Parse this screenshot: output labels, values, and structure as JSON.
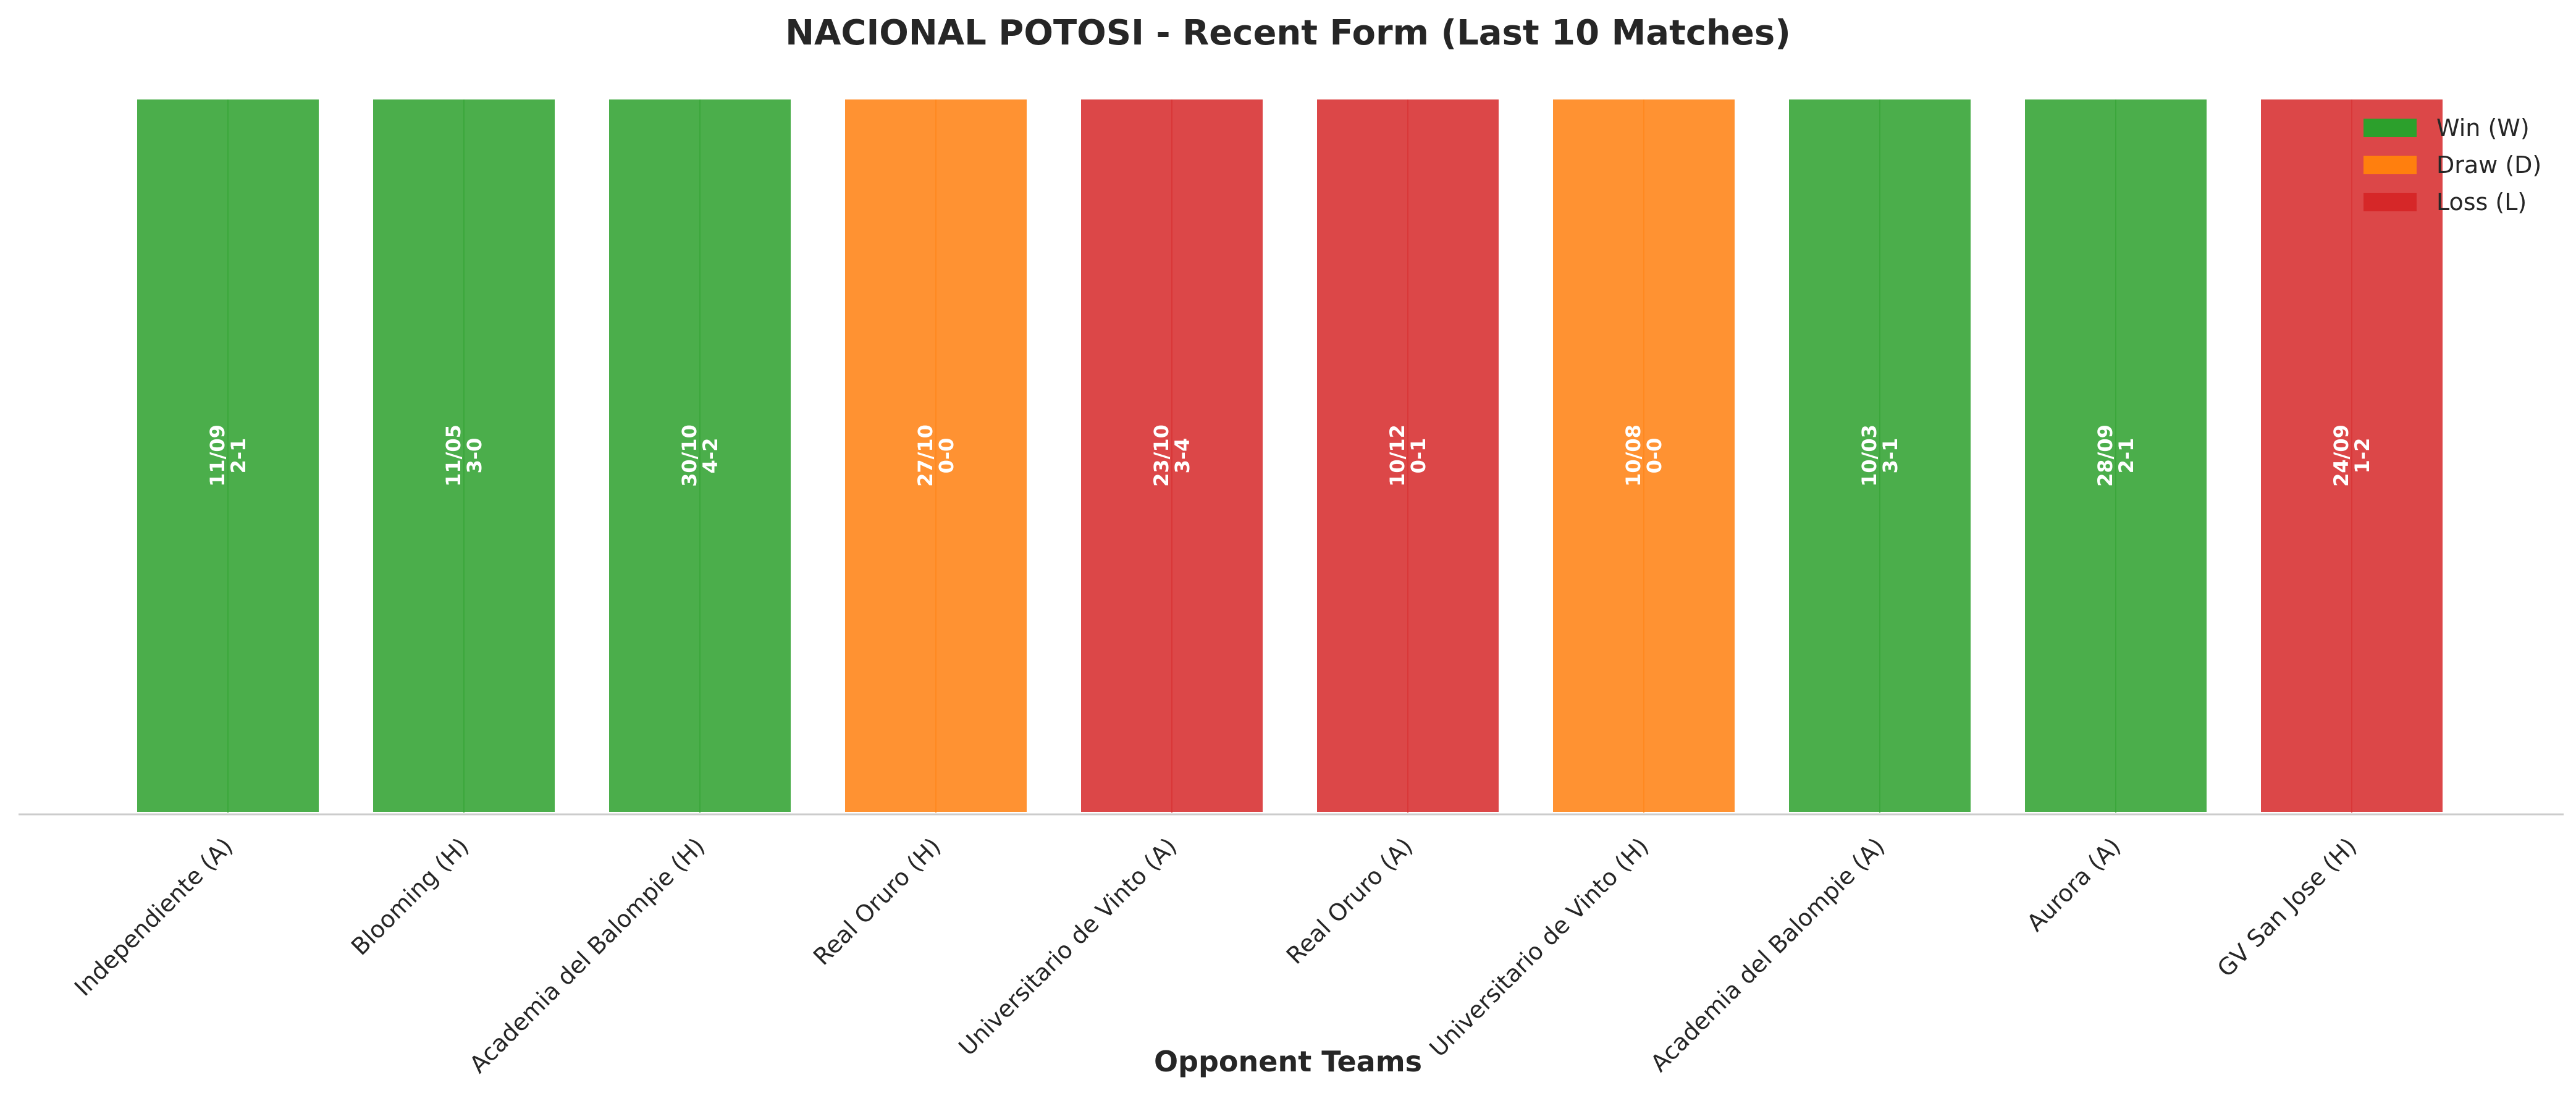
{
  "chart_data": {
    "type": "bar",
    "title": "NACIONAL POTOSI - Recent Form (Last 10 Matches)",
    "xlabel": "Opponent Teams",
    "ylabel": "",
    "ylim": [
      0,
      1
    ],
    "grid": false,
    "legend_position": "top-right",
    "categories": [
      "Independiente (A)",
      "Blooming (H)",
      "Academia del Balompie (H)",
      "Real Oruro (H)",
      "Universitario de Vinto (A)",
      "Real Oruro (A)",
      "Universitario de Vinto (H)",
      "Academia del Balompie (A)",
      "Aurora (A)",
      "GV San Jose (H)"
    ],
    "values": [
      1,
      1,
      1,
      1,
      1,
      1,
      1,
      1,
      1,
      1
    ],
    "results": [
      "W",
      "W",
      "W",
      "D",
      "L",
      "L",
      "D",
      "W",
      "W",
      "L"
    ],
    "dates": [
      "11/09",
      "11/05",
      "30/10",
      "27/10",
      "23/10",
      "10/12",
      "10/08",
      "10/03",
      "28/09",
      "24/09"
    ],
    "scores": [
      "2-1",
      "3-0",
      "4-2",
      "0-0",
      "3-4",
      "0-1",
      "0-0",
      "3-1",
      "2-1",
      "1-2"
    ],
    "legend": [
      {
        "key": "W",
        "label": "Win (W)",
        "color": "#2ca02c"
      },
      {
        "key": "D",
        "label": "Draw (D)",
        "color": "#ff7f0e"
      },
      {
        "key": "L",
        "label": "Loss (L)",
        "color": "#d62728"
      }
    ]
  }
}
